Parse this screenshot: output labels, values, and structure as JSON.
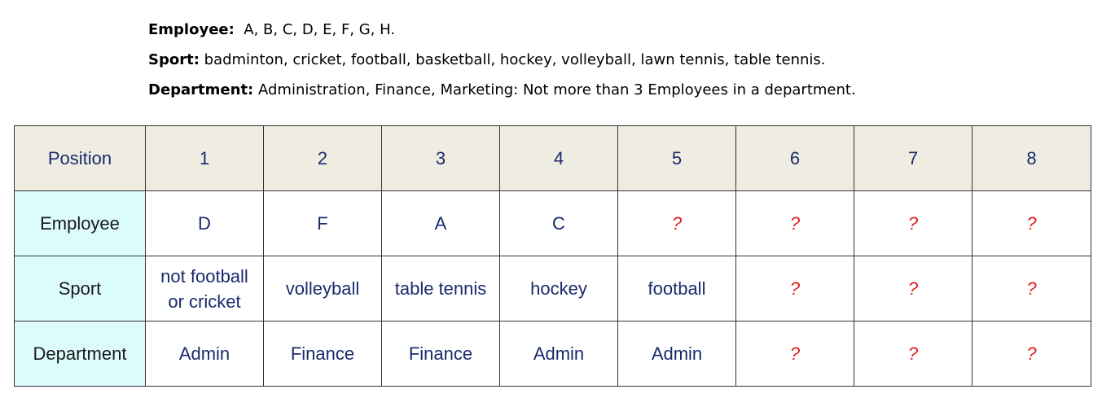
{
  "info": {
    "employee": {
      "label": "Employee:",
      "value": "A, B, C, D, E, F, G, H."
    },
    "sport": {
      "label": "Sport:",
      "value": "badminton, cricket, football, basketball, hockey, volleyball, lawn tennis, table tennis."
    },
    "department": {
      "label": "Department:",
      "value": "Administration, Finance, Marketing: Not more than 3 Employees in a department."
    }
  },
  "table": {
    "header": {
      "label": "Position",
      "cells": [
        "1",
        "2",
        "3",
        "4",
        "5",
        "6",
        "7",
        "8"
      ]
    },
    "employee": {
      "label": "Employee",
      "cells": [
        "D",
        "F",
        "A",
        "C",
        "?",
        "?",
        "?",
        "?"
      ]
    },
    "sport": {
      "label": "Sport",
      "cells": [
        "not football\nor cricket",
        "volleyball",
        "table tennis",
        "hockey",
        "football",
        "?",
        "?",
        "?"
      ]
    },
    "department": {
      "label": "Department",
      "cells": [
        "Admin",
        "Finance",
        "Finance",
        "Admin",
        "Admin",
        "?",
        "?",
        "?"
      ]
    }
  },
  "colors": {
    "header_bg": "#efede2",
    "label_bg": "#dcfbfd",
    "text": "#1a2a6c",
    "unknown": "#e02020"
  }
}
